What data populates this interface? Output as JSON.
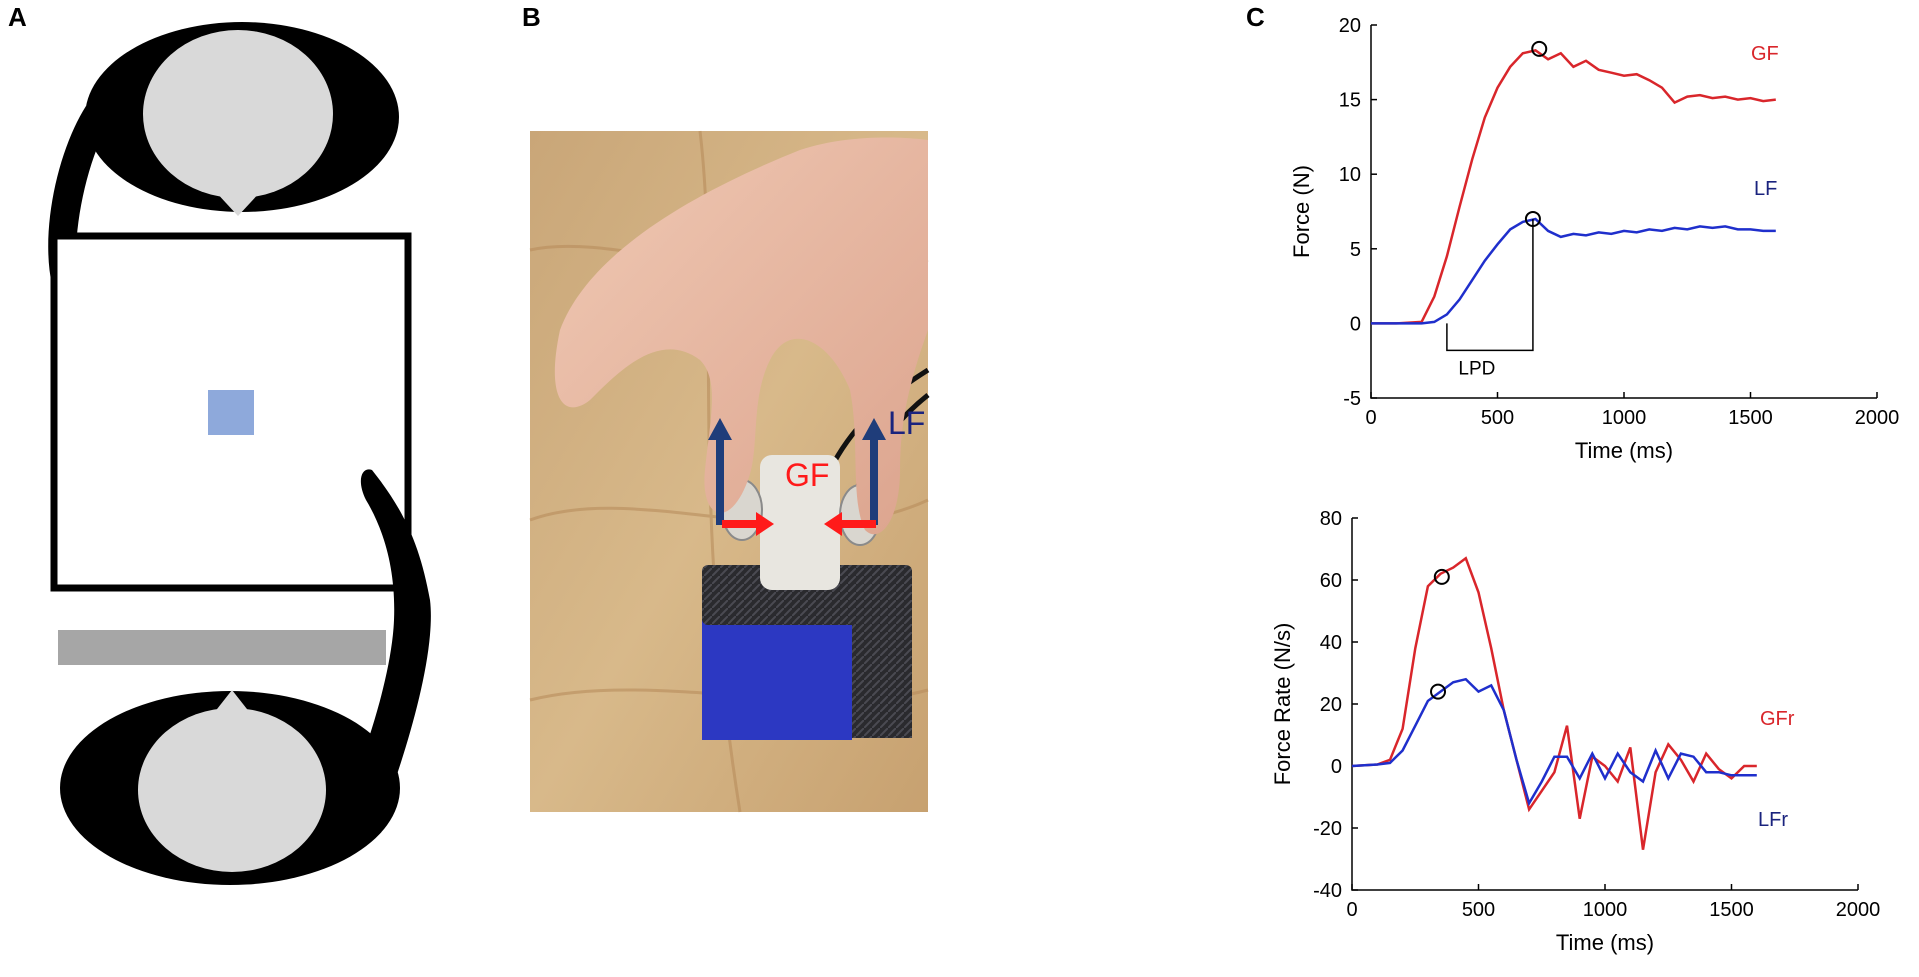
{
  "figure": {
    "panel_labels": [
      "A",
      "B",
      "C"
    ],
    "photo_annotations": {
      "lift_force": "LF",
      "grip_force": "GF"
    },
    "colors": {
      "gf_series": "#d9262b",
      "lf_series": "#1f2fcc",
      "lf_label": "#1a237e",
      "gf_label_photo": "#ff1a1a",
      "arrow_blue": "#1f3d7a",
      "target_square": "#8ea9db",
      "bar": "#a6a6a6",
      "head": "#d9d9d9"
    }
  },
  "chart_data": [
    {
      "type": "line",
      "xlabel": "Time (ms)",
      "ylabel": "Force (N)",
      "xlim": [
        0,
        2000
      ],
      "ylim": [
        -5,
        20
      ],
      "xticks": [
        0,
        500,
        1000,
        1500,
        2000
      ],
      "yticks": [
        -5,
        0,
        5,
        10,
        15,
        20
      ],
      "grid": false,
      "series": [
        {
          "name": "GF",
          "x": [
            0,
            100,
            200,
            250,
            300,
            350,
            400,
            450,
            500,
            550,
            600,
            650,
            700,
            750,
            800,
            850,
            900,
            950,
            1000,
            1050,
            1100,
            1150,
            1200,
            1250,
            1300,
            1350,
            1400,
            1450,
            1500,
            1550,
            1600
          ],
          "y": [
            0,
            0,
            0.1,
            1.8,
            4.5,
            7.8,
            11,
            13.8,
            15.8,
            17.2,
            18.1,
            18.3,
            17.7,
            18.1,
            17.2,
            17.6,
            17.0,
            16.8,
            16.6,
            16.7,
            16.3,
            15.8,
            14.8,
            15.2,
            15.3,
            15.1,
            15.2,
            15.0,
            15.1,
            14.9,
            15.0
          ],
          "peak_marker": {
            "x": 665,
            "y": 18.4
          }
        },
        {
          "name": "LF",
          "x": [
            0,
            100,
            200,
            250,
            300,
            350,
            400,
            450,
            500,
            550,
            600,
            650,
            700,
            750,
            800,
            850,
            900,
            950,
            1000,
            1050,
            1100,
            1150,
            1200,
            1250,
            1300,
            1350,
            1400,
            1450,
            1500,
            1550,
            1600
          ],
          "y": [
            0,
            0,
            0,
            0.1,
            0.6,
            1.6,
            2.9,
            4.2,
            5.3,
            6.3,
            6.8,
            7.0,
            6.2,
            5.8,
            6.0,
            5.9,
            6.1,
            6.0,
            6.2,
            6.1,
            6.3,
            6.2,
            6.4,
            6.3,
            6.5,
            6.4,
            6.5,
            6.3,
            6.3,
            6.2,
            6.2
          ],
          "peak_marker": {
            "x": 640,
            "y": 7.0
          }
        }
      ],
      "annotations": [
        {
          "text": "LPD",
          "x_start": 300,
          "x_end": 640
        }
      ]
    },
    {
      "type": "line",
      "xlabel": "Time (ms)",
      "ylabel": "Force Rate (N/s)",
      "xlim": [
        0,
        2000
      ],
      "ylim": [
        -40,
        80
      ],
      "xticks": [
        0,
        500,
        1000,
        1500,
        2000
      ],
      "yticks": [
        -40,
        -20,
        0,
        20,
        40,
        60,
        80
      ],
      "grid": false,
      "series": [
        {
          "name": "GFr",
          "x": [
            0,
            100,
            150,
            200,
            250,
            300,
            350,
            400,
            450,
            500,
            550,
            600,
            650,
            700,
            750,
            800,
            850,
            900,
            950,
            1000,
            1050,
            1100,
            1150,
            1200,
            1250,
            1300,
            1350,
            1400,
            1450,
            1500,
            1550,
            1600
          ],
          "y": [
            0,
            0.5,
            2,
            12,
            38,
            58,
            62,
            64,
            67,
            56,
            38,
            18,
            2,
            -14,
            -8,
            -2,
            13,
            -17,
            3,
            0,
            -5,
            6,
            -27,
            -2,
            7,
            2,
            -5,
            4,
            -1,
            -4,
            0,
            0
          ],
          "peak_marker": {
            "x": 355,
            "y": 61
          }
        },
        {
          "name": "LFr",
          "x": [
            0,
            100,
            150,
            200,
            250,
            300,
            350,
            400,
            450,
            500,
            550,
            600,
            650,
            700,
            750,
            800,
            850,
            900,
            950,
            1000,
            1050,
            1100,
            1150,
            1200,
            1250,
            1300,
            1350,
            1400,
            1450,
            1500,
            1550,
            1600
          ],
          "y": [
            0,
            0.5,
            1,
            5,
            13,
            21,
            24,
            27,
            28,
            24,
            26,
            18,
            2,
            -12,
            -5,
            3,
            3,
            -4,
            4,
            -4,
            4,
            -2,
            -5,
            5,
            -4,
            4,
            3,
            -2,
            -2,
            -3,
            -3,
            -3
          ],
          "peak_marker": {
            "x": 340,
            "y": 24
          }
        }
      ]
    }
  ]
}
